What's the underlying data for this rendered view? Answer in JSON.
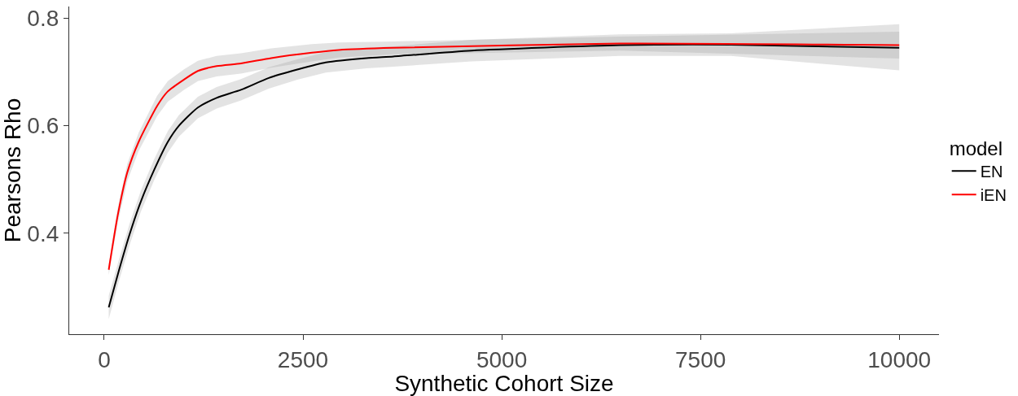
{
  "chart_data": {
    "type": "line",
    "xlabel": "Synthetic Cohort Size",
    "ylabel": "Pearsons Rho",
    "legend_title": "model",
    "legend": "right",
    "marker": "none",
    "line_style": "solid",
    "xlim": [
      -440,
      10500
    ],
    "xticks": [
      0,
      2500,
      5000,
      7500,
      10000
    ],
    "ylim": [
      0.212,
      0.822
    ],
    "yticks": [
      0.4,
      0.6,
      0.8
    ],
    "series": [
      {
        "name": "EN",
        "color": "#000000",
        "x": [
          57,
          184,
          324,
          461,
          632,
          800,
          940,
          1178,
          1414,
          1721,
          2070,
          2438,
          2787,
          3300,
          3637,
          4621,
          6486,
          7880,
          10000
        ],
        "values": [
          0.262,
          0.33,
          0.4,
          0.459,
          0.519,
          0.57,
          0.6,
          0.634,
          0.652,
          0.667,
          0.689,
          0.705,
          0.718,
          0.726,
          0.729,
          0.74,
          0.75,
          0.751,
          0.745
        ],
        "lower": [
          0.24,
          0.31,
          0.38,
          0.44,
          0.5,
          0.55,
          0.58,
          0.614,
          0.632,
          0.647,
          0.669,
          0.686,
          0.699,
          0.707,
          0.71,
          0.72,
          0.73,
          0.73,
          0.703
        ],
        "upper": [
          0.284,
          0.35,
          0.42,
          0.479,
          0.539,
          0.59,
          0.62,
          0.654,
          0.672,
          0.687,
          0.709,
          0.724,
          0.737,
          0.745,
          0.748,
          0.76,
          0.77,
          0.772,
          0.789
        ]
      },
      {
        "name": "iEN",
        "color": "#ff0000",
        "x": [
          57,
          171,
          290,
          433,
          666,
          800,
          1004,
          1178,
          1414,
          1721,
          2100,
          2613,
          2951,
          3637,
          6486,
          10000
        ],
        "values": [
          0.332,
          0.434,
          0.513,
          0.57,
          0.637,
          0.664,
          0.686,
          0.702,
          0.711,
          0.716,
          0.726,
          0.736,
          0.741,
          0.745,
          0.753,
          0.75
        ],
        "lower": [
          0.322,
          0.42,
          0.497,
          0.553,
          0.618,
          0.645,
          0.667,
          0.683,
          0.692,
          0.697,
          0.708,
          0.72,
          0.727,
          0.733,
          0.74,
          0.725
        ],
        "upper": [
          0.342,
          0.448,
          0.529,
          0.587,
          0.656,
          0.683,
          0.705,
          0.721,
          0.73,
          0.735,
          0.744,
          0.752,
          0.755,
          0.757,
          0.766,
          0.775
        ]
      }
    ]
  }
}
